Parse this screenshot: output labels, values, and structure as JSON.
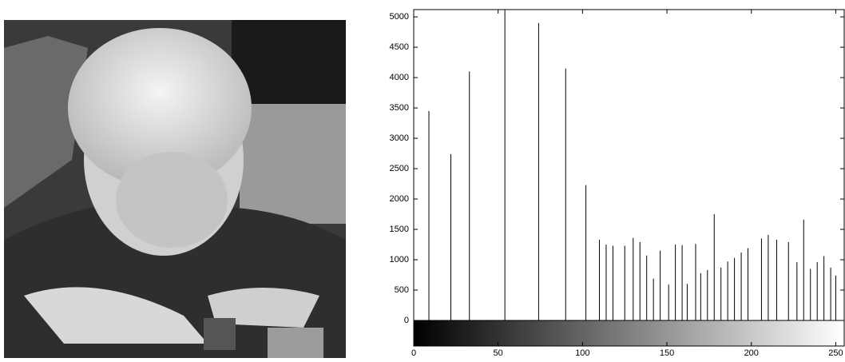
{
  "chart_data": {
    "type": "stem",
    "color": "#000000",
    "colorbar": true,
    "x": [
      9,
      22,
      33,
      54,
      74,
      90,
      102,
      110,
      114,
      118,
      125,
      130,
      134,
      138,
      142,
      146,
      151,
      155,
      159,
      162,
      167,
      170,
      174,
      178,
      182,
      186,
      190,
      194,
      198,
      206,
      210,
      215,
      222,
      227,
      231,
      235,
      239,
      243,
      247,
      250
    ],
    "values": [
      3450,
      2740,
      4100,
      5200,
      4900,
      4150,
      2230,
      1330,
      1250,
      1230,
      1230,
      1360,
      1290,
      1070,
      690,
      1150,
      590,
      1250,
      1240,
      600,
      1260,
      780,
      830,
      1750,
      870,
      970,
      1030,
      1120,
      1190,
      1350,
      1410,
      1330,
      1290,
      960,
      1660,
      850,
      960,
      1060,
      870,
      740
    ],
    "xlim": [
      0,
      255
    ],
    "ylim": [
      0,
      5120
    ],
    "xticks": [
      0,
      50,
      100,
      150,
      200,
      250
    ],
    "yticks": [
      0,
      500,
      1000,
      1500,
      2000,
      2500,
      3000,
      3500,
      4000,
      4500,
      5000
    ]
  }
}
